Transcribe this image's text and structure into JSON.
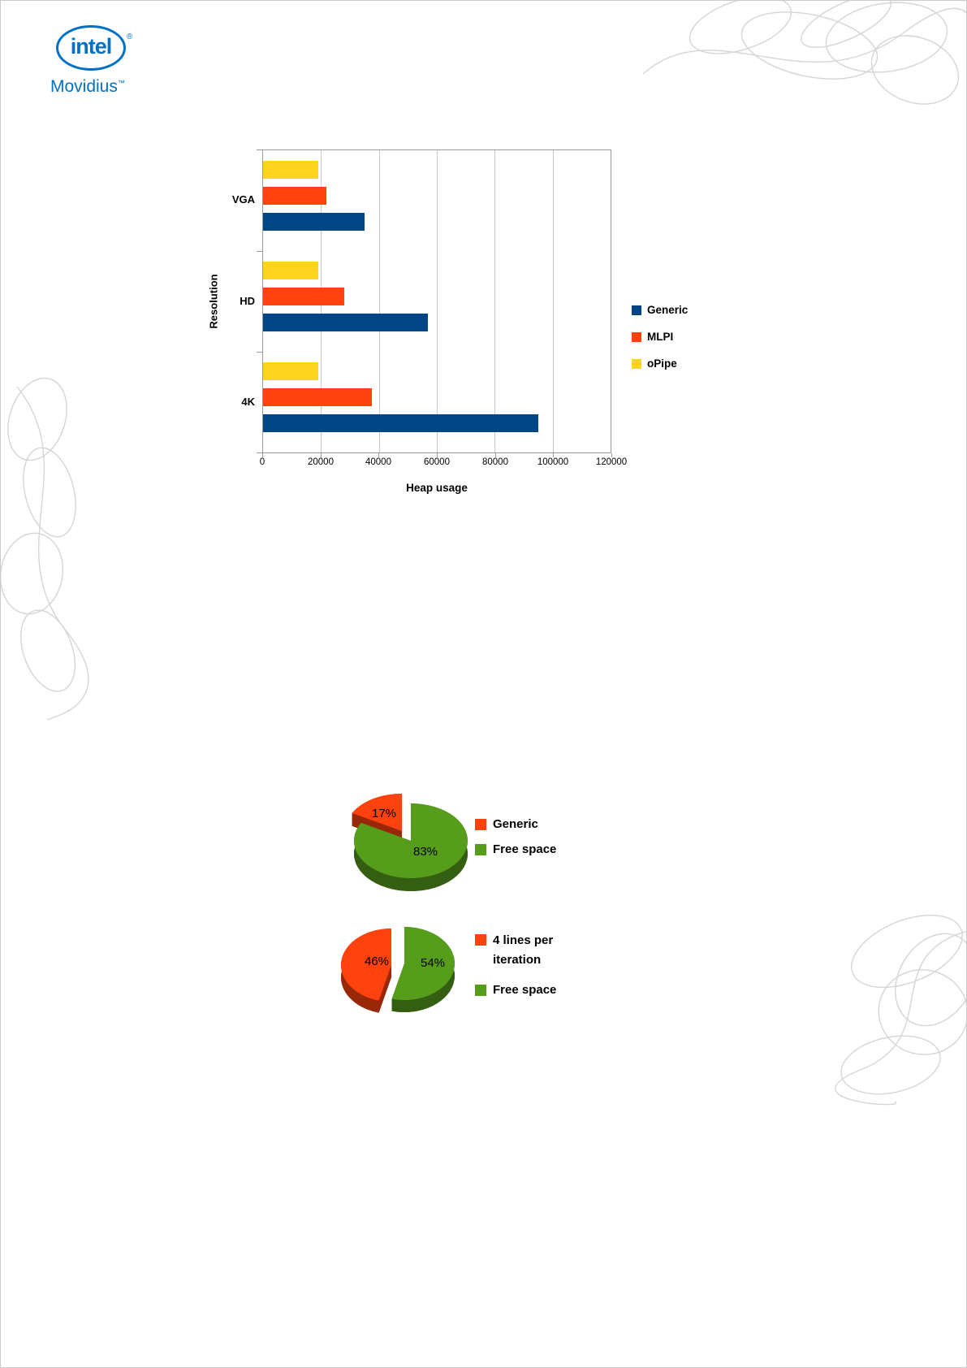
{
  "logo": {
    "brand": "intel",
    "registered": "®",
    "name": "Movidius",
    "tm": "™"
  },
  "colors": {
    "intel_blue": "#0071c5",
    "axis_gray": "#9a9a9a",
    "grid_gray": "#c8c8c8",
    "swirl_gray": "#d5d5d5"
  },
  "chart_data": [
    {
      "type": "bar",
      "orientation": "horizontal",
      "title": "",
      "xlabel": "Heap usage",
      "ylabel": "Resolution",
      "categories": [
        "VGA",
        "HD",
        "4K"
      ],
      "series": [
        {
          "name": "Generic",
          "color": "#004586",
          "values": [
            35000,
            57000,
            95000
          ]
        },
        {
          "name": "MLPI",
          "color": "#ff420e",
          "values": [
            22000,
            28000,
            37500
          ]
        },
        {
          "name": "oPipe",
          "color": "#ffd320",
          "values": [
            19000,
            19000,
            19000
          ]
        }
      ],
      "xlim": [
        0,
        120000
      ],
      "xticks": [
        0,
        20000,
        40000,
        60000,
        80000,
        100000,
        120000
      ],
      "grid": true,
      "legend_position": "right"
    },
    {
      "type": "pie",
      "style": "3d-exploded",
      "labels": [
        "Generic",
        "Free space"
      ],
      "values": [
        17,
        83
      ],
      "value_labels": [
        "17%",
        "83%"
      ],
      "colors": [
        "#ff420e",
        "#579d1c"
      ],
      "legend_position": "right"
    },
    {
      "type": "pie",
      "style": "3d-exploded",
      "labels": [
        "4 lines per iteration",
        "Free space"
      ],
      "values": [
        46,
        54
      ],
      "value_labels": [
        "46%",
        "54%"
      ],
      "colors": [
        "#ff420e",
        "#579d1c"
      ],
      "legend_position": "right"
    }
  ]
}
